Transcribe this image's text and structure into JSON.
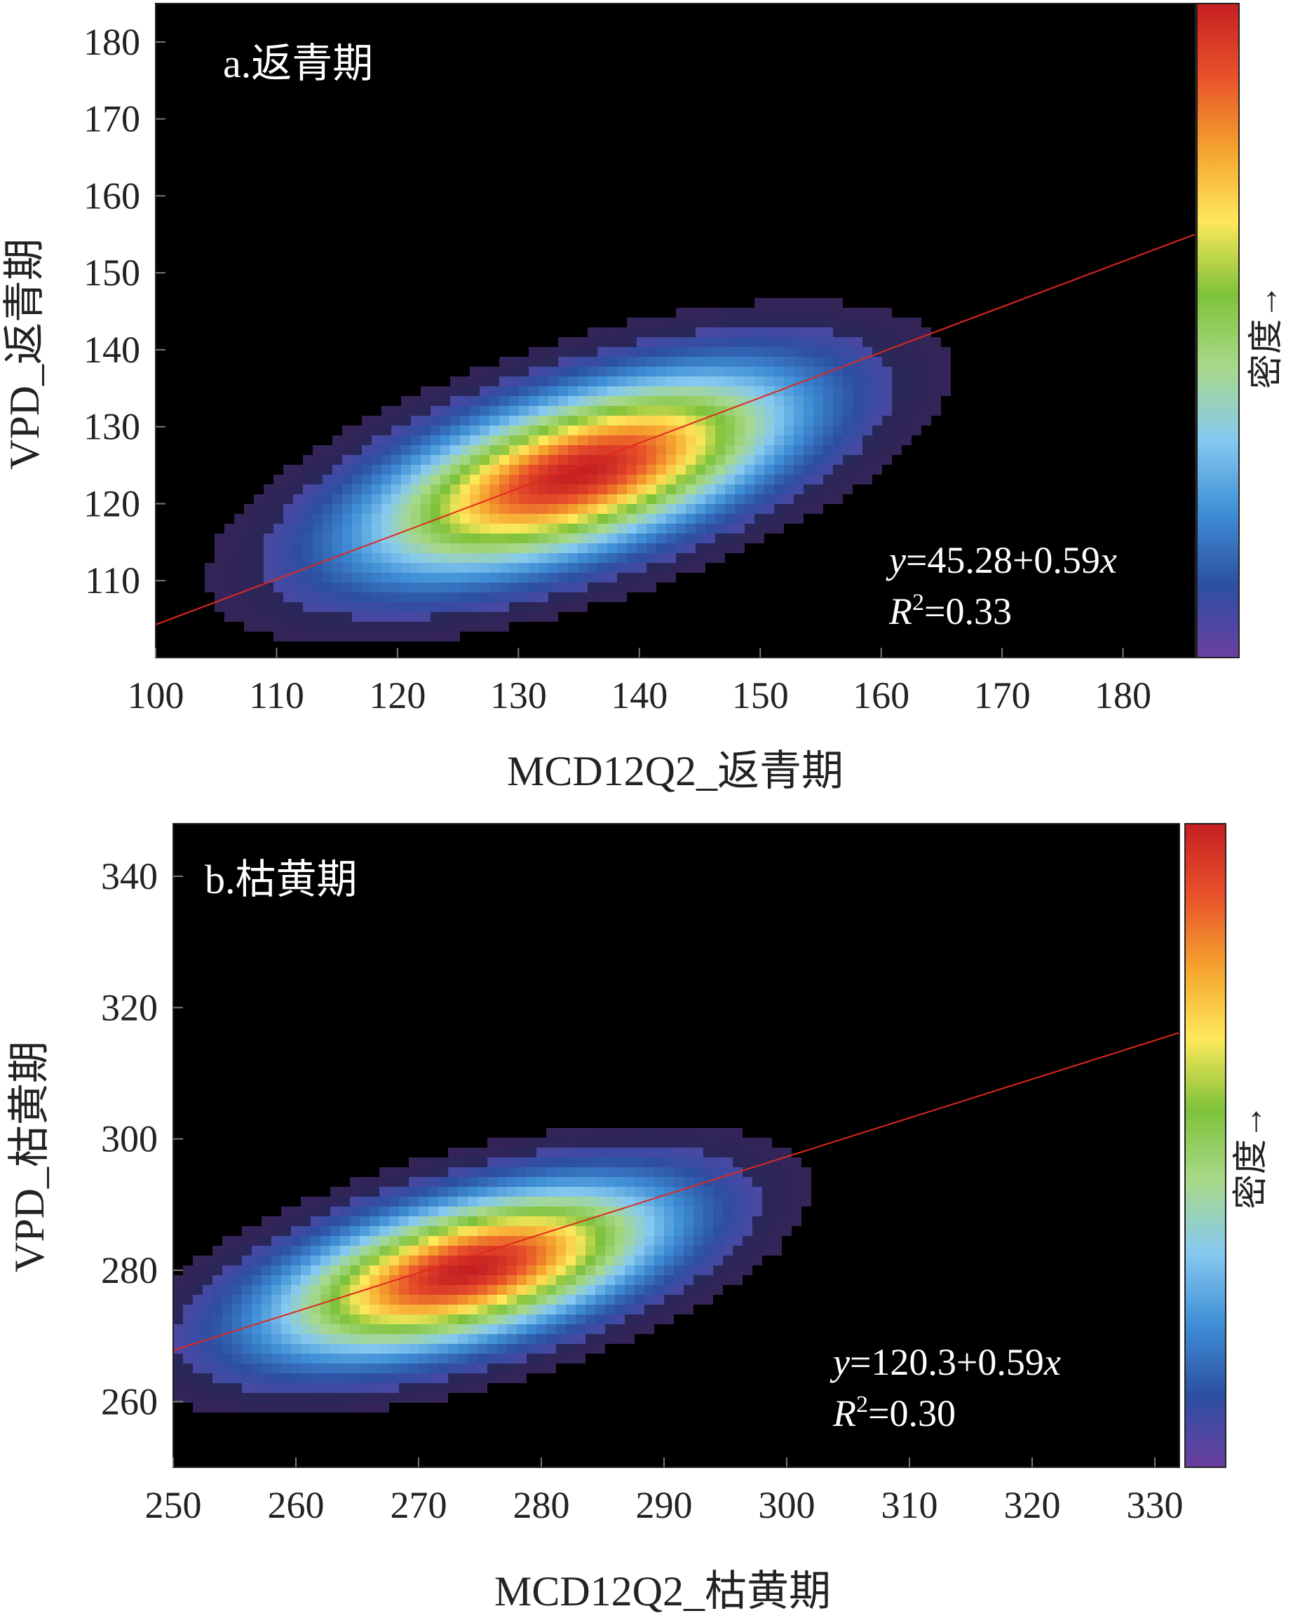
{
  "figure": {
    "colorbar_stops": [
      "#6b3fa0",
      "#2c4fa3",
      "#3f8fd6",
      "#86c9f0",
      "#a8d98a",
      "#7ec23a",
      "#ffe85a",
      "#f5a22e",
      "#e8512a",
      "#c61f22"
    ],
    "plot_background": "#000000",
    "fit_line_color": "#e0281e"
  },
  "chart_data": [
    {
      "type": "heatmap",
      "panel_title": "a.返青期",
      "xlabel": "MCD12Q2_返青期",
      "ylabel": "VPD_返青期",
      "xlim": [
        100,
        186
      ],
      "ylim": [
        100,
        185
      ],
      "x_ticks": [
        "100",
        "110",
        "120",
        "130",
        "140",
        "150",
        "160",
        "170",
        "180"
      ],
      "y_ticks": [
        "110",
        "120",
        "130",
        "140",
        "150",
        "160",
        "170",
        "180"
      ],
      "density_center": [
        135,
        124
      ],
      "density_spread": [
        11,
        8
      ],
      "density_correlation": 0.6,
      "fit": {
        "intercept": 45.28,
        "slope": 0.59
      },
      "equation": {
        "y_sym": "y",
        "rhs": "=45.28+0.59",
        "x_sym": "x"
      },
      "r2": {
        "r": "R",
        "sup": "2",
        "rhs": "=0.33"
      },
      "colorbar_label": "密度→"
    },
    {
      "type": "heatmap",
      "panel_title": "b.枯黄期",
      "xlabel": "MCD12Q2_枯黄期",
      "ylabel": "VPD_枯黄期",
      "xlim": [
        250,
        332
      ],
      "ylim": [
        250,
        348
      ],
      "x_ticks": [
        "250",
        "260",
        "270",
        "280",
        "290",
        "300",
        "310",
        "320",
        "330"
      ],
      "y_ticks": [
        "260",
        "280",
        "300",
        "320",
        "340"
      ],
      "density_center": [
        274,
        280
      ],
      "density_spread": [
        10,
        8
      ],
      "density_correlation": 0.55,
      "fit": {
        "intercept": 120.3,
        "slope": 0.59
      },
      "equation": {
        "y_sym": "y",
        "rhs": "=120.3+0.59",
        "x_sym": "x"
      },
      "r2": {
        "r": "R",
        "sup": "2",
        "rhs": "=0.30"
      },
      "colorbar_label": "密度→"
    }
  ]
}
